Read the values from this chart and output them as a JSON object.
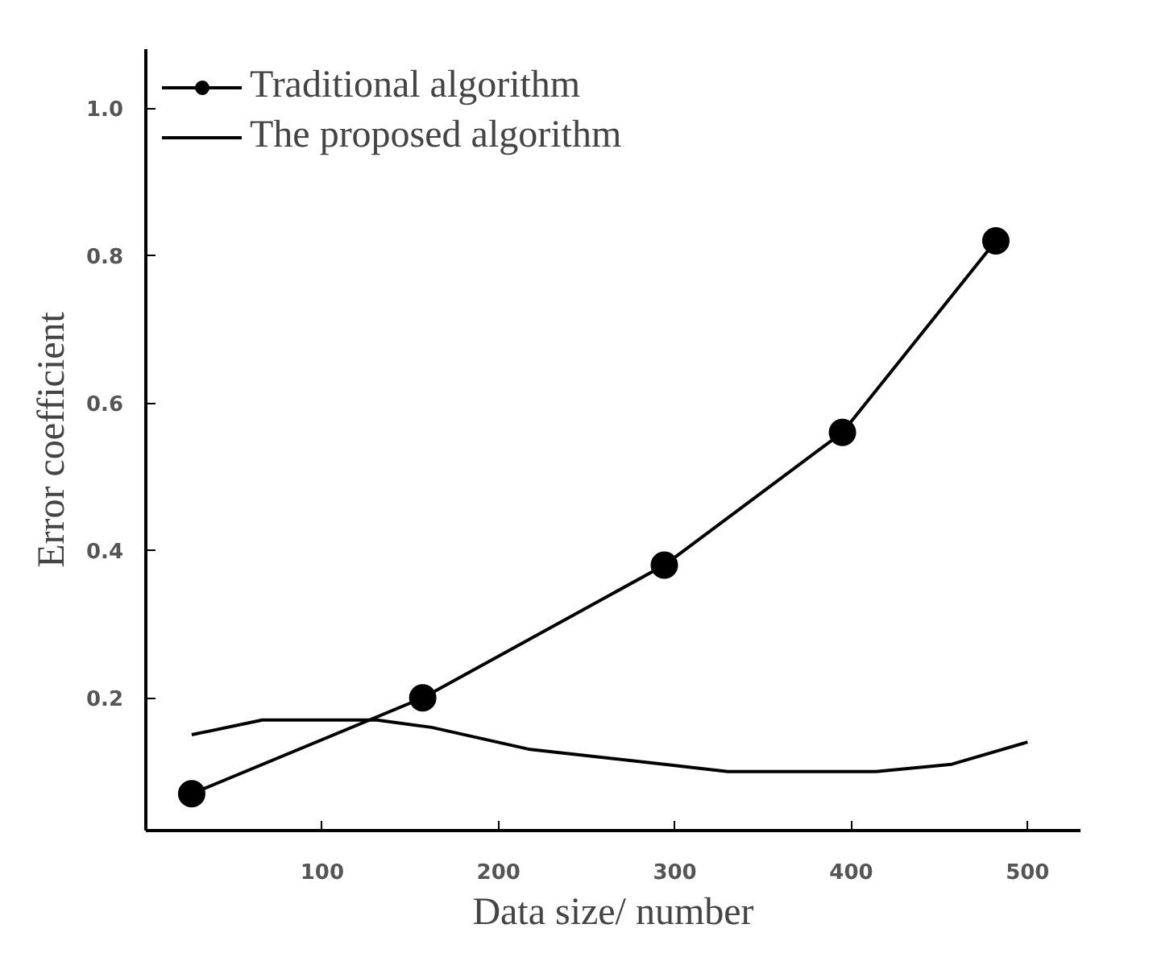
{
  "chart_data": {
    "type": "line",
    "xlabel": "Data size/ number",
    "ylabel": "Error coefficient",
    "xlim": [
      0,
      530
    ],
    "ylim": [
      0.02,
      1.08
    ],
    "xticks": [
      100,
      200,
      300,
      400,
      500
    ],
    "yticks": [
      {
        "value": 0.2,
        "label": "0.2"
      },
      {
        "value": 0.4,
        "label": "0.4"
      },
      {
        "value": 0.6,
        "label": "0.6"
      },
      {
        "value": 0.8,
        "label": "0.8"
      },
      {
        "value": 1.0,
        "label": "1.0"
      }
    ],
    "grid": false,
    "legend": "top left",
    "line_style": "solid",
    "series": [
      {
        "name": "Traditional algorithm",
        "color": "#000000",
        "marker": "circle",
        "x": [
          26,
          157,
          294,
          395,
          482
        ],
        "values": [
          0.07,
          0.2,
          0.38,
          0.56,
          0.82
        ]
      },
      {
        "name": "The proposed algorithm",
        "color": "#000000",
        "marker": "none",
        "x": [
          26,
          66,
          131,
          162,
          218,
          294,
          330,
          414,
          457,
          500
        ],
        "values": [
          0.15,
          0.17,
          0.17,
          0.16,
          0.13,
          0.11,
          0.1,
          0.1,
          0.11,
          0.14
        ]
      }
    ]
  }
}
